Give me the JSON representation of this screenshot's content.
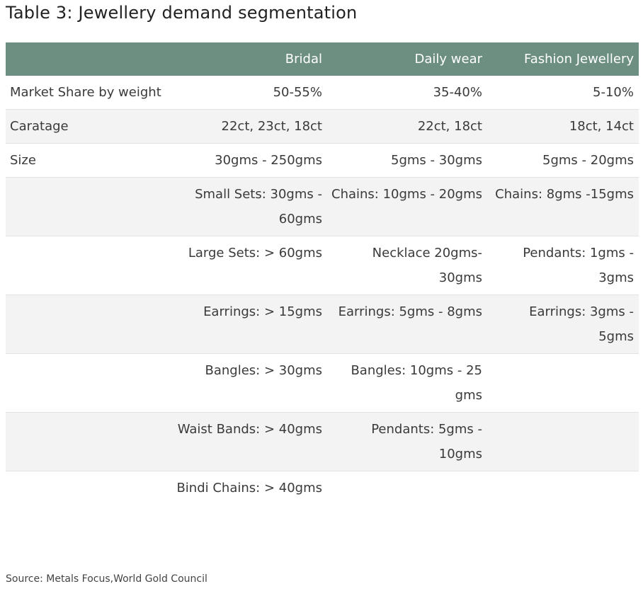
{
  "title": "Table 3: Jewellery demand segmentation",
  "columns": [
    "",
    "Bridal",
    "Daily wear",
    "Fashion Jewellery"
  ],
  "rows": [
    [
      "Market Share by weight",
      "50-55%",
      "35-40%",
      "5-10%"
    ],
    [
      "Caratage",
      "22ct, 23ct, 18ct",
      "22ct, 18ct",
      "18ct, 14ct"
    ],
    [
      "Size",
      "30gms - 250gms",
      "5gms - 30gms",
      "5gms - 20gms"
    ],
    [
      "",
      "Small Sets: 30gms - 60gms",
      "Chains: 10gms - 20gms",
      "Chains: 8gms -15gms"
    ],
    [
      "",
      "Large Sets: > 60gms",
      "Necklace 20gms-30gms",
      "Pendants: 1gms - 3gms"
    ],
    [
      "",
      "Earrings: > 15gms",
      "Earrings: 5gms - 8gms",
      "Earrings: 3gms - 5gms"
    ],
    [
      "",
      "Bangles: > 30gms",
      "Bangles: 10gms - 25 gms",
      ""
    ],
    [
      "",
      "Waist Bands: > 40gms",
      "Pendants: 5gms - 10gms",
      ""
    ],
    [
      "",
      "Bindi Chains: > 40gms",
      "",
      ""
    ]
  ],
  "source": "Source: Metals Focus,World Gold Council",
  "colors": {
    "header_bg": "#6d8f82",
    "header_text": "#ffffff",
    "stripe_bg": "#f3f3f3"
  }
}
